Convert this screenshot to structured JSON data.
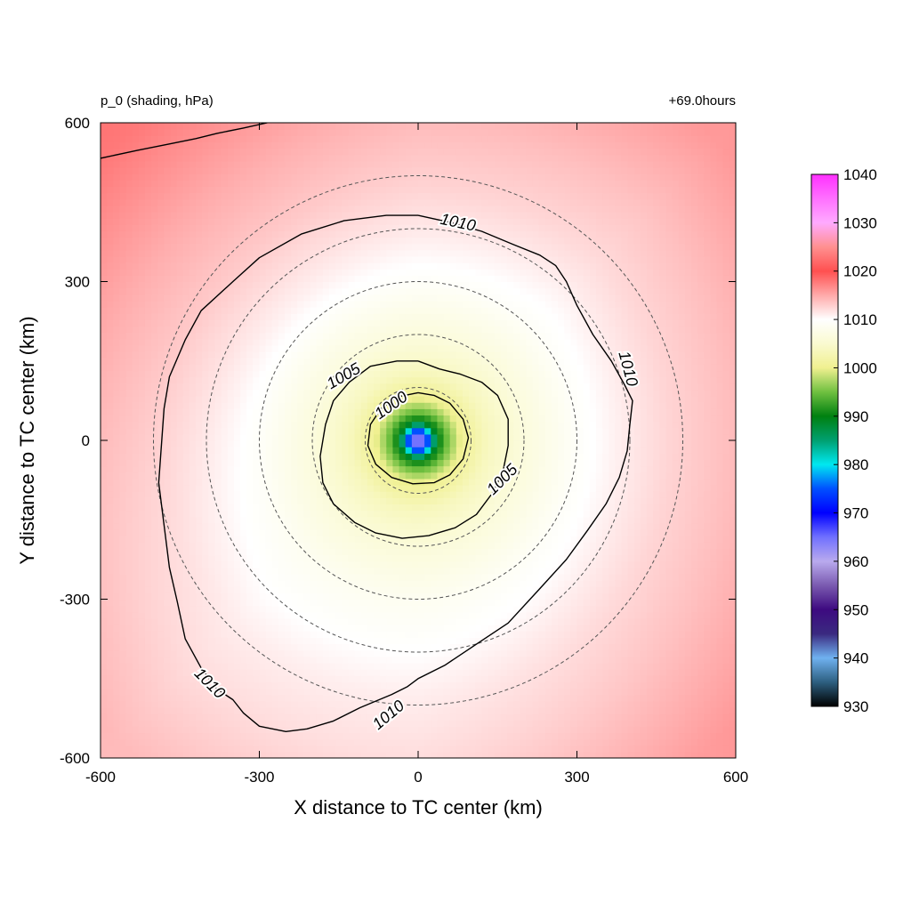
{
  "chart_data": {
    "type": "heatmap",
    "variable_label": "p_0 (shading, hPa)",
    "time_label": "+69.0hours",
    "xlabel": "X distance to TC center (km)",
    "ylabel": "Y distance to TC center (km)",
    "xlim": [
      -600,
      600
    ],
    "ylim": [
      -600,
      600
    ],
    "xticks": [
      "-600",
      "-300",
      "0",
      "300",
      "600"
    ],
    "yticks": [
      "600",
      "300",
      "0",
      "-300",
      "-600"
    ],
    "colorbar": {
      "range": [
        930,
        1040
      ],
      "tick_labels": [
        "1040",
        "1030",
        "1020",
        "1010",
        "1000",
        "990",
        "980",
        "970",
        "960",
        "950",
        "940",
        "930"
      ],
      "stops": [
        {
          "value": 930,
          "color": "#000000"
        },
        {
          "value": 935,
          "color": "#2d5f80"
        },
        {
          "value": 940,
          "color": "#6fb1f0"
        },
        {
          "value": 945,
          "color": "#3a2a80"
        },
        {
          "value": 950,
          "color": "#3d0a80"
        },
        {
          "value": 955,
          "color": "#7a5ab0"
        },
        {
          "value": 960,
          "color": "#b9aaee"
        },
        {
          "value": 965,
          "color": "#7070ff"
        },
        {
          "value": 970,
          "color": "#0000ff"
        },
        {
          "value": 975,
          "color": "#0050ff"
        },
        {
          "value": 980,
          "color": "#00e8f0"
        },
        {
          "value": 985,
          "color": "#00a070"
        },
        {
          "value": 990,
          "color": "#008010"
        },
        {
          "value": 995,
          "color": "#70c040"
        },
        {
          "value": 1000,
          "color": "#f0f090"
        },
        {
          "value": 1005,
          "color": "#fafad0"
        },
        {
          "value": 1010,
          "color": "#ffffff"
        },
        {
          "value": 1015,
          "color": "#ffaaaa"
        },
        {
          "value": 1020,
          "color": "#ff5050"
        },
        {
          "value": 1025,
          "color": "#ff9090"
        },
        {
          "value": 1030,
          "color": "#ffaaff"
        },
        {
          "value": 1035,
          "color": "#ff70ff"
        },
        {
          "value": 1040,
          "color": "#ff30ff"
        }
      ]
    },
    "field": {
      "center_pressure": 958,
      "ambient_pressure": 1011.5,
      "radial_profile_km_hpa": [
        [
          0,
          958
        ],
        [
          10,
          966
        ],
        [
          22,
          978
        ],
        [
          35,
          989
        ],
        [
          55,
          995
        ],
        [
          80,
          1000
        ],
        [
          130,
          1003.5
        ],
        [
          200,
          1006
        ],
        [
          300,
          1008.5
        ],
        [
          400,
          1010
        ],
        [
          480,
          1011
        ],
        [
          600,
          1012
        ],
        [
          800,
          1014
        ]
      ],
      "northwest_gradient_hpa": 4,
      "east_gradient_hpa": 2.5
    },
    "contour_levels": [
      "1000",
      "1005",
      "1010"
    ],
    "contour_labels": [
      {
        "text": "1010",
        "x": 75,
        "y": 410,
        "angle": 12
      },
      {
        "text": "1010",
        "x": 395,
        "y": 135,
        "angle": 75
      },
      {
        "text": "1010",
        "x": -395,
        "y": -460,
        "angle": 45
      },
      {
        "text": "1010",
        "x": -55,
        "y": -520,
        "angle": -40
      },
      {
        "text": "1005",
        "x": -140,
        "y": 120,
        "angle": -30
      },
      {
        "text": "1005",
        "x": 160,
        "y": -75,
        "angle": -45
      },
      {
        "text": "1000",
        "x": -50,
        "y": 65,
        "angle": -35
      }
    ],
    "contours": {
      "c1010": [
        [
          -285,
          600
        ],
        [
          -330,
          590
        ],
        [
          -380,
          580
        ],
        [
          -420,
          570
        ],
        [
          -470,
          560
        ],
        [
          -530,
          548
        ],
        [
          -600,
          533
        ]
      ],
      "c1010_main": [
        [
          0,
          425
        ],
        [
          60,
          412
        ],
        [
          120,
          395
        ],
        [
          180,
          370
        ],
        [
          230,
          350
        ],
        [
          260,
          330
        ],
        [
          280,
          300
        ],
        [
          300,
          255
        ],
        [
          330,
          200
        ],
        [
          365,
          150
        ],
        [
          390,
          105
        ],
        [
          405,
          75
        ],
        [
          400,
          30
        ],
        [
          395,
          -20
        ],
        [
          380,
          -70
        ],
        [
          355,
          -120
        ],
        [
          320,
          -170
        ],
        [
          280,
          -225
        ],
        [
          230,
          -280
        ],
        [
          170,
          -345
        ],
        [
          110,
          -385
        ],
        [
          50,
          -425
        ],
        [
          0,
          -450
        ],
        [
          -20,
          -465
        ],
        [
          -50,
          -480
        ],
        [
          -110,
          -505
        ],
        [
          -160,
          -530
        ],
        [
          -210,
          -545
        ],
        [
          -250,
          -550
        ],
        [
          -300,
          -540
        ],
        [
          -330,
          -515
        ],
        [
          -350,
          -490
        ],
        [
          -380,
          -470
        ],
        [
          -410,
          -430
        ],
        [
          -440,
          -375
        ],
        [
          -455,
          -305
        ],
        [
          -470,
          -240
        ],
        [
          -480,
          -160
        ],
        [
          -490,
          -80
        ],
        [
          -485,
          -10
        ],
        [
          -480,
          60
        ],
        [
          -470,
          120
        ],
        [
          -440,
          190
        ],
        [
          -410,
          245
        ],
        [
          -350,
          300
        ],
        [
          -300,
          345
        ],
        [
          -220,
          390
        ],
        [
          -140,
          415
        ],
        [
          -60,
          425
        ],
        [
          0,
          425
        ]
      ],
      "c1005": [
        [
          0,
          150
        ],
        [
          40,
          135
        ],
        [
          80,
          125
        ],
        [
          120,
          110
        ],
        [
          150,
          85
        ],
        [
          170,
          40
        ],
        [
          170,
          -10
        ],
        [
          160,
          -60
        ],
        [
          140,
          -100
        ],
        [
          110,
          -140
        ],
        [
          70,
          -165
        ],
        [
          20,
          -180
        ],
        [
          -30,
          -185
        ],
        [
          -80,
          -175
        ],
        [
          -120,
          -155
        ],
        [
          -160,
          -120
        ],
        [
          -180,
          -80
        ],
        [
          -185,
          -30
        ],
        [
          -175,
          30
        ],
        [
          -160,
          75
        ],
        [
          -130,
          110
        ],
        [
          -90,
          140
        ],
        [
          -40,
          150
        ],
        [
          0,
          150
        ]
      ],
      "c1000": [
        [
          0,
          90
        ],
        [
          30,
          85
        ],
        [
          60,
          70
        ],
        [
          85,
          40
        ],
        [
          95,
          5
        ],
        [
          85,
          -35
        ],
        [
          60,
          -65
        ],
        [
          30,
          -80
        ],
        [
          -10,
          -82
        ],
        [
          -50,
          -70
        ],
        [
          -80,
          -45
        ],
        [
          -95,
          -10
        ],
        [
          -90,
          30
        ],
        [
          -70,
          60
        ],
        [
          -40,
          82
        ],
        [
          0,
          90
        ]
      ]
    },
    "dashed_circle_radii_km": [
      100,
      200,
      300,
      400,
      500
    ]
  }
}
